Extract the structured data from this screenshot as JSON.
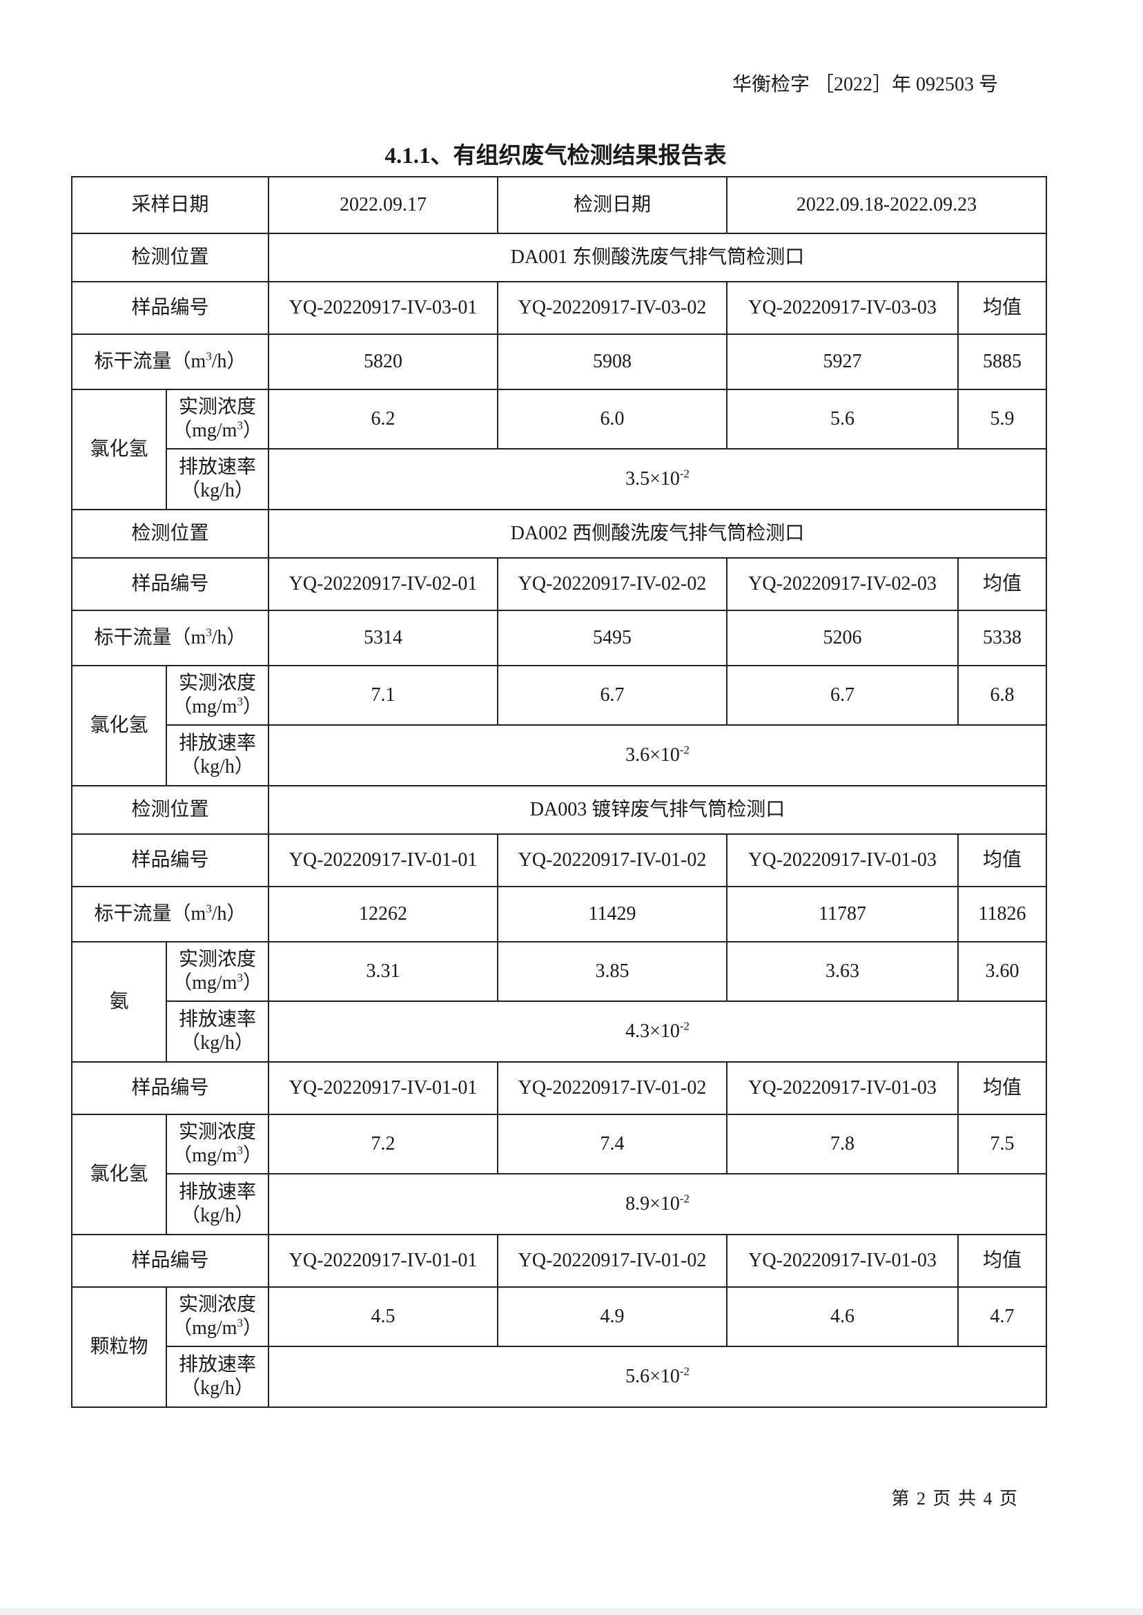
{
  "header": {
    "report_number": "华衡检字 ［2022］年 092503 号"
  },
  "title": "4.1.1、有组织废气检测结果报告表",
  "info": {
    "sampling_date_label": "采样日期",
    "sampling_date": "2022.09.17",
    "test_date_label": "检测日期",
    "test_date": "2022.09.18-2022.09.23"
  },
  "labels": {
    "location": "检测位置",
    "sample_id": "样品编号",
    "average": "均值",
    "flow": "标干流量（m",
    "flow_sup": "3",
    "flow_tail": "/h）",
    "conc": "实测浓度",
    "conc_unit": "（mg/m",
    "conc_unit_sup": "3",
    "conc_unit_tail": "）",
    "rate": "排放速率",
    "rate_unit": "（kg/h）"
  },
  "sections": [
    {
      "location": "DA001 东侧酸洗废气排气筒检测口",
      "groups": [
        {
          "sample_ids": [
            "YQ-20220917-IV-03-01",
            "YQ-20220917-IV-03-02",
            "YQ-20220917-IV-03-03"
          ],
          "flow": {
            "values": [
              "5820",
              "5908",
              "5927"
            ],
            "avg": "5885"
          },
          "pollutant": "氯化氢",
          "conc": {
            "values": [
              "6.2",
              "6.0",
              "5.6"
            ],
            "avg": "5.9"
          },
          "rate": {
            "base": "3.5×10",
            "exp": "-2"
          }
        }
      ]
    },
    {
      "location": "DA002 西侧酸洗废气排气筒检测口",
      "groups": [
        {
          "sample_ids": [
            "YQ-20220917-IV-02-01",
            "YQ-20220917-IV-02-02",
            "YQ-20220917-IV-02-03"
          ],
          "flow": {
            "values": [
              "5314",
              "5495",
              "5206"
            ],
            "avg": "5338"
          },
          "pollutant": "氯化氢",
          "conc": {
            "values": [
              "7.1",
              "6.7",
              "6.7"
            ],
            "avg": "6.8"
          },
          "rate": {
            "base": "3.6×10",
            "exp": "-2"
          }
        }
      ]
    },
    {
      "location": "DA003 镀锌废气排气筒检测口",
      "groups": [
        {
          "sample_ids": [
            "YQ-20220917-IV-01-01",
            "YQ-20220917-IV-01-02",
            "YQ-20220917-IV-01-03"
          ],
          "flow": {
            "values": [
              "12262",
              "11429",
              "11787"
            ],
            "avg": "11826"
          },
          "pollutant": "氨",
          "conc": {
            "values": [
              "3.31",
              "3.85",
              "3.63"
            ],
            "avg": "3.60"
          },
          "rate": {
            "base": "4.3×10",
            "exp": "-2"
          }
        },
        {
          "sample_ids": [
            "YQ-20220917-IV-01-01",
            "YQ-20220917-IV-01-02",
            "YQ-20220917-IV-01-03"
          ],
          "pollutant": "氯化氢",
          "conc": {
            "values": [
              "7.2",
              "7.4",
              "7.8"
            ],
            "avg": "7.5"
          },
          "rate": {
            "base": "8.9×10",
            "exp": "-2"
          }
        },
        {
          "sample_ids": [
            "YQ-20220917-IV-01-01",
            "YQ-20220917-IV-01-02",
            "YQ-20220917-IV-01-03"
          ],
          "pollutant": "颗粒物",
          "conc": {
            "values": [
              "4.5",
              "4.9",
              "4.6"
            ],
            "avg": "4.7"
          },
          "rate": {
            "base": "5.6×10",
            "exp": "-2"
          }
        }
      ]
    }
  ],
  "footer": {
    "page": "第 2 页 共 4 页"
  }
}
